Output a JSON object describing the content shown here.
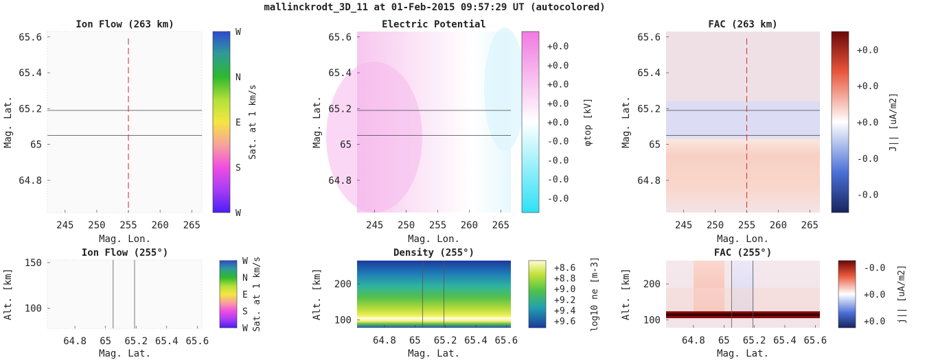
{
  "figure": {
    "title": "mallinckrodt_3D_11 at 01-Feb-2015 09:57:29 UT (autocolored)"
  },
  "chart_data": [
    {
      "id": "ion-flow-top",
      "type": "heatmap",
      "title": "Ion Flow (263 km)",
      "xlabel": "Mag. Lon.",
      "ylabel": "Mag. Lat.",
      "xticks": [
        245,
        250,
        255,
        260,
        265
      ],
      "yticks": [
        64.8,
        65,
        65.2,
        65.4,
        65.6
      ],
      "xlim": [
        242.2,
        266.6
      ],
      "ylim": [
        64.62,
        65.63
      ],
      "hlines": [
        65.05,
        65.19
      ],
      "vline": 255,
      "colorbar": {
        "label": "Sat. at 1 km/s",
        "ticks": [
          "W",
          "N",
          "E",
          "S",
          "W"
        ],
        "colors": [
          "#4b1ef2",
          "#d83cf0",
          "#f5e640",
          "#2eb82e",
          "#2e4ad0"
        ]
      }
    },
    {
      "id": "potential-top",
      "type": "heatmap",
      "title": "Electric Potential",
      "xlabel": "Mag. Lon.",
      "ylabel": "Mag. Lat.",
      "xticks": [
        245,
        250,
        255,
        260,
        265
      ],
      "yticks": [
        64.8,
        65,
        65.2,
        65.4,
        65.6
      ],
      "xlim": [
        242.2,
        266.6
      ],
      "ylim": [
        64.62,
        65.63
      ],
      "hlines": [
        65.05,
        65.19
      ],
      "colorbar": {
        "label": "φtop [kV]",
        "ticks": [
          "+0.0",
          "+0.0",
          "+0.0",
          "+0.0",
          "+0.0",
          "-0.0",
          "-0.0",
          "-0.0",
          "-0.0"
        ],
        "colors": [
          "#2ee0f5",
          "#ffffff",
          "#f07ae0"
        ]
      }
    },
    {
      "id": "fac-top",
      "type": "heatmap",
      "title": "FAC (263 km)",
      "xlabel": "Mag. Lon.",
      "ylabel": "Mag. Lat.",
      "xticks": [
        245,
        250,
        255,
        260,
        265
      ],
      "yticks": [
        64.8,
        65,
        65.2,
        65.4,
        65.6
      ],
      "xlim": [
        242.2,
        266.6
      ],
      "ylim": [
        64.62,
        65.63
      ],
      "hlines": [
        65.05,
        65.19
      ],
      "vline": 255,
      "colorbar": {
        "label": "J|| [uA/m2]",
        "ticks": [
          "+0.0",
          "+0.0",
          "+0.0",
          "-0.0",
          "-0.0"
        ],
        "colors": [
          "#1a2a6e",
          "#4a6fd6",
          "#ffffff",
          "#e8553a",
          "#6e0a0a"
        ]
      }
    },
    {
      "id": "ion-flow-bottom",
      "type": "heatmap",
      "title": "Ion Flow (255°)",
      "xlabel": "Mag. Lat.",
      "ylabel": "Alt. [km]",
      "xticks": [
        64.8,
        65,
        65.2,
        65.4,
        65.6
      ],
      "yticks": [
        100,
        150
      ],
      "xlim": [
        64.62,
        65.63
      ],
      "ylim": [
        78,
        153
      ],
      "vlines": [
        65.05,
        65.19
      ],
      "colorbar": {
        "label": "Sat. at 1 km/s",
        "ticks": [
          "W",
          "N",
          "E",
          "S",
          "W"
        ],
        "colors": [
          "#4b1ef2",
          "#d83cf0",
          "#f5e640",
          "#2eb82e",
          "#2e4ad0"
        ]
      }
    },
    {
      "id": "density-bottom",
      "type": "heatmap",
      "title": "Density (255°)",
      "xlabel": "Mag. Lat.",
      "ylabel": "Alt. [km]",
      "xticks": [
        64.8,
        65,
        65.2,
        65.4,
        65.6
      ],
      "yticks": [
        100,
        200
      ],
      "xlim": [
        64.62,
        65.63
      ],
      "ylim": [
        78,
        265
      ],
      "vlines": [
        65.05,
        65.19
      ],
      "colorbar": {
        "label": "log10 ne [m-3]",
        "ticks": [
          "+8.6",
          "+8.8",
          "+9.0",
          "+9.2",
          "+9.4",
          "+9.6"
        ],
        "colors": [
          "#1a3a9e",
          "#21a0b0",
          "#4fc24a",
          "#c6e13a",
          "#fefed0"
        ]
      }
    },
    {
      "id": "fac-bottom",
      "type": "heatmap",
      "title": "FAC (255°)",
      "xlabel": "Mag. Lat.",
      "ylabel": "Alt. [km]",
      "xticks": [
        64.8,
        65,
        65.2,
        65.4,
        65.6
      ],
      "yticks": [
        100,
        200
      ],
      "xlim": [
        64.62,
        65.63
      ],
      "ylim": [
        78,
        265
      ],
      "vlines": [
        65.05,
        65.19
      ],
      "colorbar": {
        "label": "j|| [uA/m2]",
        "ticks": [
          "-0.0",
          "+0.0",
          "+0.0"
        ],
        "colors": [
          "#1a2a6e",
          "#4a6fd6",
          "#ffffff",
          "#e8553a",
          "#6e0a0a"
        ]
      }
    }
  ]
}
